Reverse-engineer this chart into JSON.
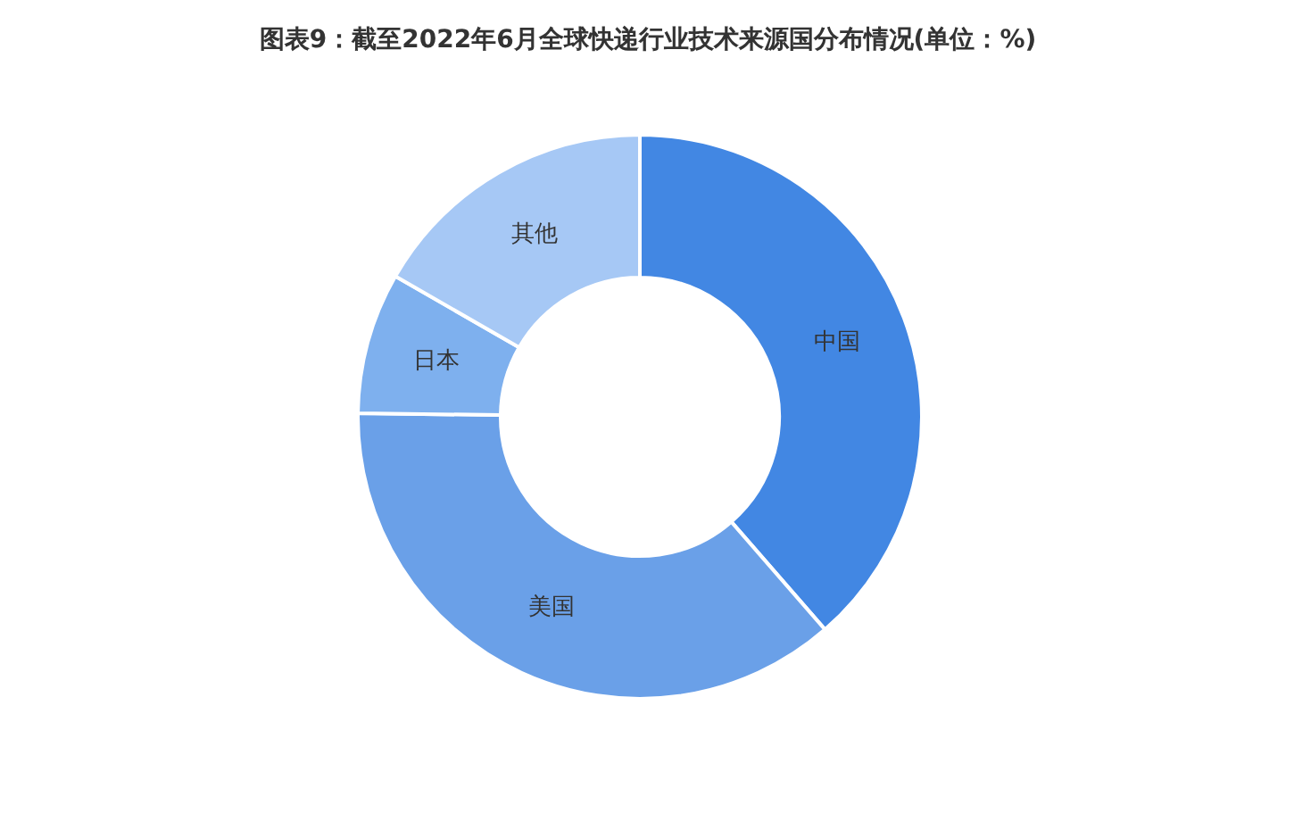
{
  "chart_data": {
    "type": "donut",
    "title": "图表9：截至2022年6月全球快递行业技术来源国分布情况(单位：%)",
    "categories": [
      "中国",
      "美国",
      "日本",
      "其他"
    ],
    "values": [
      38.6,
      36.6,
      8.1,
      16.7
    ],
    "colors": [
      "#4287e3",
      "#6aa0e8",
      "#7eb0ee",
      "#a6c8f5"
    ],
    "legend": false
  }
}
